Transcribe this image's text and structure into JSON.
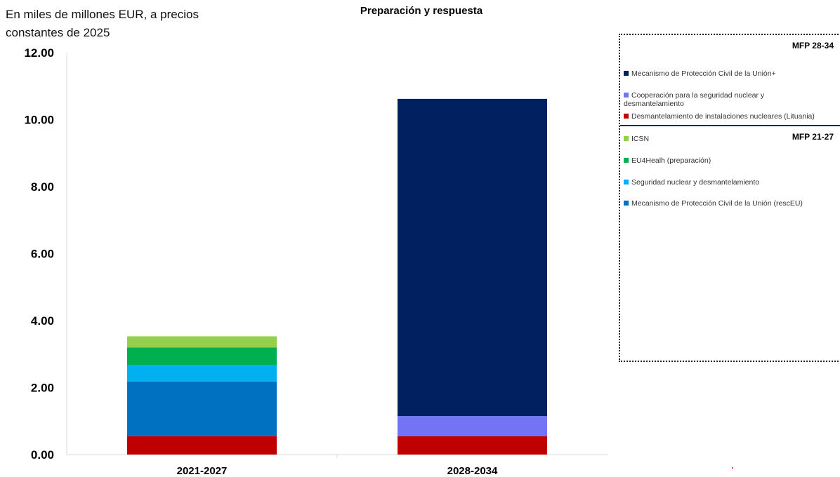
{
  "chart_data": {
    "type": "bar",
    "stacked": true,
    "title": "Preparación y respuesta",
    "ylabel": "En miles de millones EUR, a precios constantes de 2025",
    "xlabel": "",
    "categories": [
      "2021-2027",
      "2028-2034"
    ],
    "ylim": [
      0,
      12
    ],
    "yticks": [
      "0.00",
      "2.00",
      "4.00",
      "6.00",
      "8.00",
      "10.00",
      "12.00"
    ],
    "grid": false,
    "legend_position": "right",
    "series": [
      {
        "name": "Desmantelamiento de instalaciones nucleares (Lituania)",
        "color": "#c00000",
        "values": [
          0.55,
          0.55
        ]
      },
      {
        "name": "Mecanismo de Protección Civil de la Unión (rescEU)",
        "color": "#0070c0",
        "values": [
          1.63,
          0
        ]
      },
      {
        "name": "Seguridad nuclear y desmantelamiento",
        "color": "#00b0f0",
        "values": [
          0.5,
          0
        ]
      },
      {
        "name": "EU4Healh (preparación)",
        "color": "#00b050",
        "values": [
          0.52,
          0
        ]
      },
      {
        "name": "ICSN",
        "color": "#92d050",
        "values": [
          0.33,
          0
        ]
      },
      {
        "name": "Cooperación para la seguridad nuclear y desmantelamiento",
        "color": "#7373f5",
        "values": [
          0,
          0.6
        ]
      },
      {
        "name": "Mecanismo de Protección Civil de la Unión+",
        "color": "#002060",
        "values": [
          0,
          9.47
        ]
      }
    ]
  },
  "legend": {
    "group_28_34": {
      "heading": "MFP 28-34",
      "items": [
        {
          "label": "Mecanismo de Protección Civil de la Unión+",
          "color": "#002060"
        },
        {
          "label": "Cooperación para la seguridad nuclear y desmantelamiento",
          "color": "#7373f5"
        },
        {
          "label": "Desmantelamiento de instalaciones nucleares (Lituania)",
          "color": "#c00000"
        }
      ]
    },
    "group_21_27": {
      "heading": "MFP 21-27",
      "items": [
        {
          "label": "ICSN",
          "color": "#92d050"
        },
        {
          "label": "EU4Healh (preparación)",
          "color": "#00b050"
        },
        {
          "label": "Seguridad nuclear y desmantelamiento",
          "color": "#00b0f0"
        },
        {
          "label": "Mecanismo de Protección Civil de la Unión (rescEU)",
          "color": "#0070c0"
        }
      ]
    }
  }
}
